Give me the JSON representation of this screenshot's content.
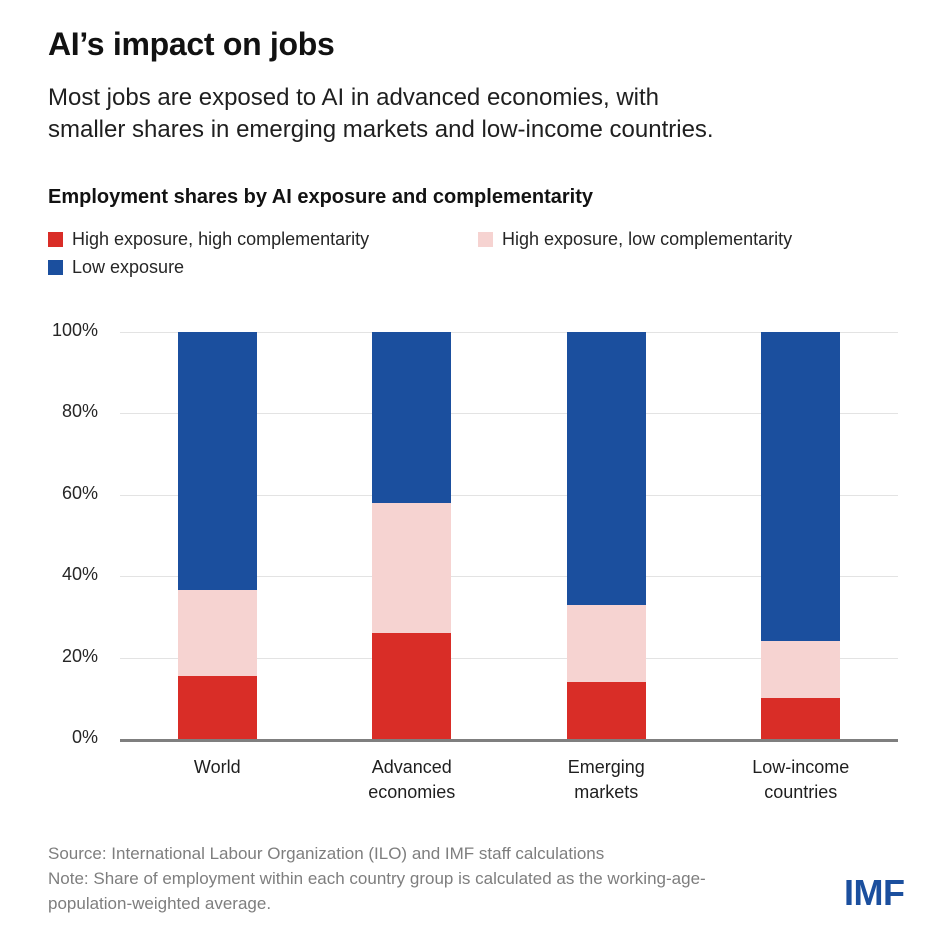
{
  "header": {
    "title": "AI’s impact on jobs",
    "subtitle_lines": [
      "Most jobs are exposed to AI in advanced economies, with",
      "smaller shares in emerging markets and low-income countries."
    ]
  },
  "chart": {
    "heading": "Employment shares by AI exposure and complementarity"
  },
  "legend": {
    "items": [
      {
        "label": "High exposure, high complementarity",
        "color": "#d92d27"
      },
      {
        "label": "High exposure, low complementarity",
        "color": "#f6d3d1"
      },
      {
        "label": "Low exposure",
        "color": "#1b4f9e"
      }
    ]
  },
  "chart_data": {
    "type": "bar",
    "stacked": true,
    "title": "Employment shares by AI exposure and complementarity",
    "categories": [
      "World",
      "Advanced economies",
      "Emerging markets",
      "Low-income countries"
    ],
    "series": [
      {
        "name": "High exposure, high complementarity",
        "color": "#d92d27",
        "values": [
          15.5,
          26,
          14,
          10
        ]
      },
      {
        "name": "High exposure, low complementarity",
        "color": "#f6d3d1",
        "values": [
          21,
          32,
          19,
          14
        ]
      },
      {
        "name": "Low exposure",
        "color": "#1b4f9e",
        "values": [
          63.5,
          42,
          67,
          76
        ]
      }
    ],
    "ylim": [
      0,
      100
    ],
    "yticks": [
      0,
      20,
      40,
      60,
      80,
      100
    ],
    "ytick_suffix": "%",
    "grid": "horizontal",
    "legend_position": "top-left",
    "gridline_color": "#e3e3e3",
    "axis_color": "#7f7f7f"
  },
  "footer": {
    "source": "Source: International Labour Organization (ILO) and IMF staff calculations",
    "note_lines": [
      "Note: Share of employment within each country group is calculated as the working-age-",
      "population-weighted average."
    ],
    "logo": "IMF",
    "logo_color": "#1b4f9e"
  }
}
